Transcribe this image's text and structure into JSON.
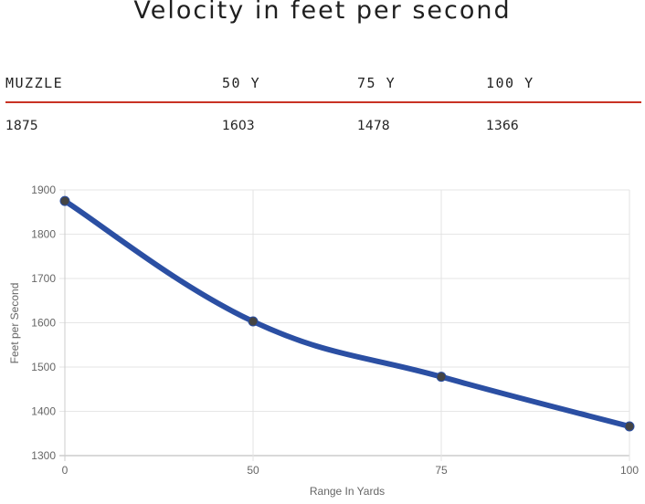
{
  "title": "Velocity in feet per second",
  "table": {
    "headers": [
      "MUZZLE",
      "50 Y",
      "75 Y",
      "100 Y"
    ],
    "values": [
      "1875",
      "1603",
      "1478",
      "1366"
    ],
    "rule_color": "#c93224"
  },
  "chart_data": {
    "type": "line",
    "title": "",
    "xlabel": "Range In Yards",
    "ylabel": "Feet per Second",
    "categories": [
      "0",
      "50",
      "75",
      "100"
    ],
    "series": [
      {
        "name": "Velocity",
        "values": [
          1875,
          1603,
          1478,
          1366
        ],
        "color": "#2b4fa3",
        "point_color": "#444444"
      }
    ],
    "ylim": [
      1300,
      1900
    ],
    "yticks": [
      1900,
      1800,
      1700,
      1600,
      1500,
      1400,
      1300
    ],
    "x_spacing": "categorical (evenly spaced)",
    "grid": true,
    "legend": "none"
  }
}
